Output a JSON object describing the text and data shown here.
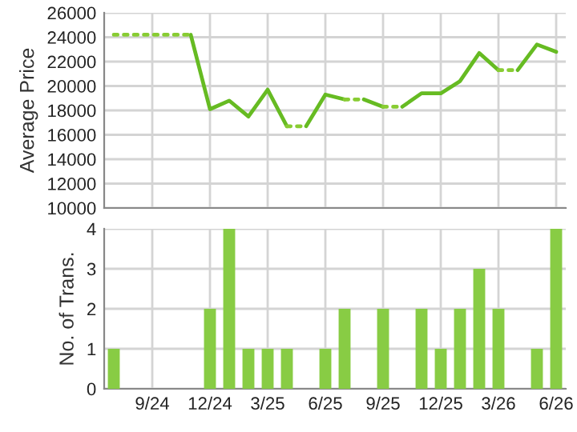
{
  "chart_data": [
    {
      "type": "line",
      "ylabel": "Average Price",
      "categories": [
        null,
        null,
        null,
        null,
        null,
        null,
        null,
        null,
        null,
        null,
        null,
        null,
        null,
        null,
        null,
        null,
        null,
        null,
        null,
        null,
        null,
        null,
        null,
        null
      ],
      "tick_labels": "y",
      "ylim": [
        10000,
        26000
      ],
      "yticks": [
        10000,
        12000,
        14000,
        16000,
        18000,
        20000,
        22000,
        24000,
        26000
      ],
      "grid": true,
      "legend": false,
      "series": [
        {
          "color": "#66bb22",
          "line_style": "solid",
          "values": [
            null,
            null,
            null,
            null,
            24200,
            18100,
            18800,
            17500,
            19700,
            16700,
            null,
            null,
            null,
            18900,
            18300,
            null,
            null,
            null,
            null,
            null,
            null,
            21300,
            23400,
            22800
          ]
        },
        {
          "color": "#66bb22",
          "line_style": "solid",
          "values": [
            null,
            null,
            null,
            null,
            null,
            null,
            null,
            null,
            null,
            null,
            16700,
            19300,
            18900,
            null,
            null,
            18300,
            19400,
            19400,
            20400,
            22700,
            21300,
            null,
            null,
            null
          ]
        },
        {
          "color": "#88cc33",
          "line_style": "dotted",
          "values": [
            24200,
            24200,
            24200,
            24200,
            24200,
            null,
            null,
            null,
            null,
            16700,
            16700,
            null,
            18900,
            18900,
            null,
            null,
            null,
            null,
            null,
            null,
            21300,
            21300,
            null,
            null
          ]
        },
        {
          "color": "#88cc33",
          "line_style": "dotted",
          "values": [
            null,
            null,
            null,
            null,
            null,
            null,
            null,
            null,
            null,
            null,
            null,
            null,
            null,
            null,
            18300,
            18300,
            null,
            null,
            null,
            null,
            null,
            null,
            null,
            null
          ]
        }
      ]
    },
    {
      "type": "bar",
      "ylabel": "No. of Trans.",
      "categories": [
        null,
        null,
        "9/24",
        null,
        null,
        "12/24",
        null,
        null,
        "3/25",
        null,
        null,
        "6/25",
        null,
        null,
        "9/25",
        null,
        null,
        "12/25",
        null,
        null,
        "3/26",
        null,
        null,
        "6/26"
      ],
      "ylim": [
        0,
        4
      ],
      "yticks": [
        0,
        1,
        2,
        3,
        4
      ],
      "grid": true,
      "legend": false,
      "values": [
        1,
        0,
        0,
        0,
        0,
        2,
        4,
        1,
        1,
        1,
        0,
        1,
        2,
        0,
        2,
        0,
        2,
        1,
        2,
        3,
        2,
        0,
        1,
        4
      ],
      "color": "#88cc44"
    }
  ]
}
